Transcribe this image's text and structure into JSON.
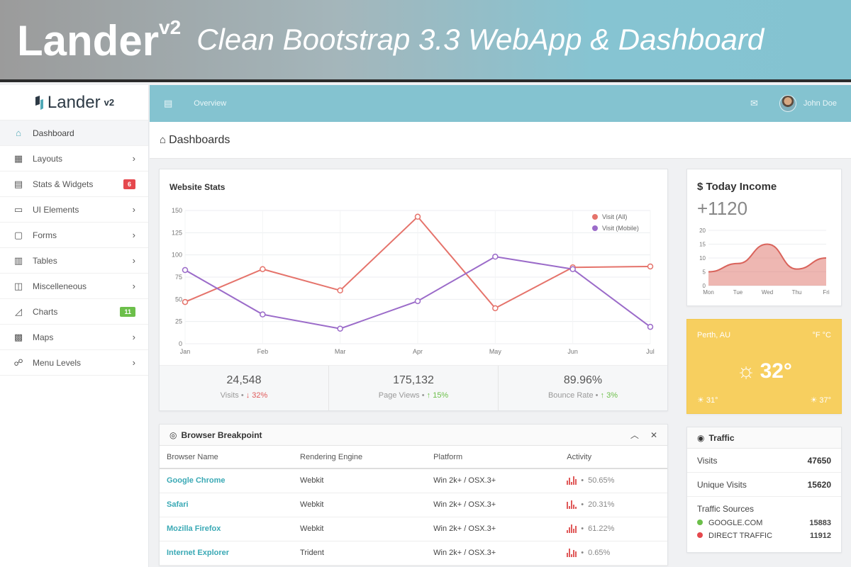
{
  "banner": {
    "title": "Lander",
    "version": "v2",
    "subtitle": "Clean Bootstrap 3.3 WebApp & Dashboard"
  },
  "sidebar": {
    "brand": "Lander",
    "brand_version": "v2",
    "items": [
      {
        "label": "Dashboard",
        "icon": "home-icon",
        "glyph": "⌂",
        "active": true
      },
      {
        "label": "Layouts",
        "icon": "grid-icon",
        "glyph": "▦"
      },
      {
        "label": "Stats & Widgets",
        "icon": "widgets-icon",
        "glyph": "▤",
        "badge": "6",
        "badge_color": "#e5484d"
      },
      {
        "label": "UI Elements",
        "icon": "monitor-icon",
        "glyph": "▭"
      },
      {
        "label": "Forms",
        "icon": "forms-icon",
        "glyph": "▢"
      },
      {
        "label": "Tables",
        "icon": "table-icon",
        "glyph": "▥"
      },
      {
        "label": "Miscelleneous",
        "icon": "misc-icon",
        "glyph": "◫"
      },
      {
        "label": "Charts",
        "icon": "chart-icon",
        "glyph": "◿",
        "badge": "11",
        "badge_color": "#6cbf4a"
      },
      {
        "label": "Maps",
        "icon": "map-icon",
        "glyph": "▩"
      },
      {
        "label": "Menu Levels",
        "icon": "sitemap-icon",
        "glyph": "☍"
      }
    ]
  },
  "topbar": {
    "link_text": "Overview",
    "user_name": "John Doe"
  },
  "page": {
    "title": "Dashboards"
  },
  "website_stats": {
    "title": "Website Stats",
    "stats": [
      {
        "value": "24,548",
        "label": "Visits",
        "change": "32%",
        "direction": "down"
      },
      {
        "value": "175,132",
        "label": "Page Views",
        "change": "15%",
        "direction": "up"
      },
      {
        "value": "89.96%",
        "label": "Bounce Rate",
        "change": "3%",
        "direction": "up"
      }
    ]
  },
  "chart_data": [
    {
      "type": "line",
      "title": "Website Stats",
      "categories": [
        "Jan",
        "Feb",
        "Mar",
        "Apr",
        "May",
        "Jun",
        "Jul"
      ],
      "ylim": [
        0,
        150
      ],
      "yticks": [
        0,
        25,
        50,
        75,
        100,
        125,
        150
      ],
      "grid": true,
      "legend": "top-right",
      "series": [
        {
          "name": "Visit (All)",
          "color": "#e5736b",
          "values": [
            47,
            84,
            60,
            143,
            40,
            86,
            87
          ]
        },
        {
          "name": "Visit (Mobile)",
          "color": "#9b6bc9",
          "values": [
            83,
            33,
            17,
            48,
            98,
            84,
            19
          ]
        }
      ]
    },
    {
      "type": "area",
      "title": "",
      "categories": [
        "Mon",
        "Tue",
        "Wed",
        "Thu",
        "Fri"
      ],
      "ylim": [
        0,
        20
      ],
      "yticks": [
        0,
        5,
        10,
        15,
        20
      ],
      "series": [
        {
          "color": "#e07b72",
          "values": [
            5,
            8,
            15,
            6,
            10
          ]
        }
      ]
    }
  ],
  "income": {
    "title": "Today Income",
    "currency": "$",
    "value": "+1120"
  },
  "weather": {
    "location": "Perth, AU",
    "units": "°F °C",
    "temp": "32°",
    "low": "31°",
    "high": "37°"
  },
  "traffic": {
    "title": "Traffic",
    "visits_label": "Visits",
    "visits": "47650",
    "unique_label": "Unique Visits",
    "unique": "15620",
    "sources_title": "Traffic Sources",
    "sources": [
      {
        "name": "GOOGLE.COM",
        "value": "15883",
        "color": "#6cbf4a"
      },
      {
        "name": "DIRECT TRAFFIC",
        "value": "11912",
        "color": "#e5484d"
      }
    ]
  },
  "browser": {
    "title": "Browser Breakpoint",
    "headers": [
      "Browser Name",
      "Rendering Engine",
      "Platform",
      "Activity"
    ],
    "rows": [
      {
        "name": "Google Chrome",
        "engine": "Webkit",
        "platform": "Win 2k+ / OSX.3+",
        "activity": "50.65%"
      },
      {
        "name": "Safari",
        "engine": "Webkit",
        "platform": "Win 2k+ / OSX.3+",
        "activity": "20.31%"
      },
      {
        "name": "Mozilla Firefox",
        "engine": "Webkit",
        "platform": "Win 2k+ / OSX.3+",
        "activity": "61.22%"
      },
      {
        "name": "Internet Explorer",
        "engine": "Trident",
        "platform": "Win 2k+ / OSX.3+",
        "activity": "0.65%"
      }
    ]
  }
}
